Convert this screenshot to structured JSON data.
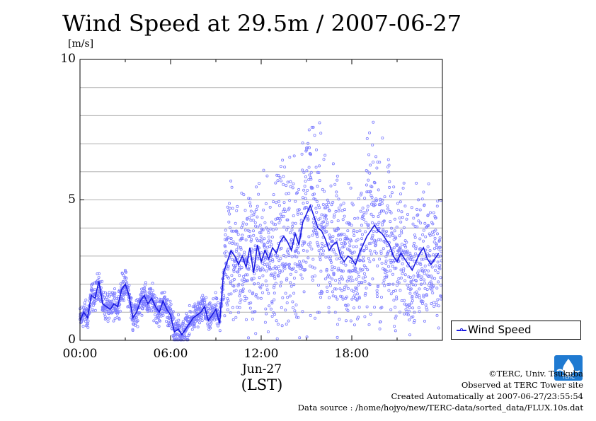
{
  "chart_data": {
    "type": "line",
    "title": "Wind Speed at 29.5m / 2007-06-27",
    "ylabel": "[m/s]",
    "xlabel": "(LST)",
    "date_label": "Jun-27",
    "xlim_hours": [
      0,
      24
    ],
    "ylim": [
      0,
      10
    ],
    "y_ticks": [
      0,
      5,
      10
    ],
    "y_tick_labels": [
      "0",
      "5",
      "10"
    ],
    "x_ticks_hours": [
      0,
      6,
      12,
      18
    ],
    "x_tick_labels": [
      "00:00",
      "06:00",
      "12:00",
      "18:00"
    ],
    "grid": "horizontal, every 1 m/s",
    "legend_position": "bottom-right",
    "series": [
      {
        "name": "Wind Speed",
        "color": "#1a1ae0",
        "raw_color": "#7d7dff",
        "x_hours": [
          0.0,
          0.25,
          0.5,
          0.75,
          1.0,
          1.25,
          1.5,
          1.75,
          2.0,
          2.25,
          2.5,
          2.75,
          3.0,
          3.25,
          3.5,
          3.75,
          4.0,
          4.25,
          4.5,
          4.75,
          5.0,
          5.25,
          5.5,
          5.75,
          6.0,
          6.25,
          6.5,
          6.75,
          7.0,
          7.25,
          7.5,
          7.75,
          8.0,
          8.25,
          8.5,
          8.75,
          9.0,
          9.25,
          9.5,
          9.75,
          10.0,
          10.25,
          10.5,
          10.75,
          11.0,
          11.25,
          11.5,
          11.75,
          12.0,
          12.25,
          12.5,
          12.75,
          13.0,
          13.25,
          13.5,
          13.75,
          14.0,
          14.25,
          14.5,
          14.75,
          15.0,
          15.25,
          15.5,
          15.75,
          16.0,
          16.25,
          16.5,
          16.75,
          17.0,
          17.25,
          17.5,
          17.75,
          18.0,
          18.25,
          18.5,
          18.75,
          19.0,
          19.25,
          19.5,
          19.75,
          20.0,
          20.25,
          20.5,
          20.75,
          21.0,
          21.25,
          21.5,
          21.75,
          22.0,
          22.25,
          22.5,
          22.75,
          23.0,
          23.25,
          23.5,
          23.75
        ],
        "values": [
          0.7,
          1.0,
          0.8,
          1.6,
          1.5,
          2.1,
          1.3,
          1.2,
          1.1,
          1.3,
          1.2,
          1.8,
          2.0,
          1.6,
          0.8,
          1.0,
          1.4,
          1.6,
          1.3,
          1.5,
          1.2,
          1.0,
          1.4,
          1.1,
          0.9,
          0.3,
          0.4,
          0.2,
          0.4,
          0.6,
          0.8,
          0.9,
          1.0,
          1.2,
          0.7,
          0.9,
          1.1,
          0.6,
          2.4,
          2.8,
          3.2,
          3.0,
          2.7,
          3.0,
          2.6,
          3.3,
          2.4,
          3.4,
          2.8,
          3.2,
          2.9,
          3.3,
          3.1,
          3.5,
          3.7,
          3.5,
          3.2,
          3.8,
          3.4,
          4.2,
          4.5,
          4.8,
          4.4,
          4.0,
          3.9,
          3.6,
          3.2,
          3.4,
          3.5,
          3.0,
          2.8,
          3.0,
          2.9,
          2.7,
          3.1,
          3.4,
          3.7,
          3.9,
          4.1,
          3.9,
          3.8,
          3.6,
          3.4,
          3.0,
          2.8,
          3.1,
          2.9,
          2.7,
          2.5,
          2.8,
          3.1,
          3.3,
          2.9,
          2.7,
          2.9,
          3.1
        ]
      }
    ]
  },
  "credits": {
    "copyright": "©TERC, Univ. Tsukuba",
    "observed": "Observed at TERC Tower site",
    "created": "Created Automatically at 2007-06-27/23:55:54",
    "source": "Data source : /home/hojyo/new/TERC-data/sorted_data/FLUX.10s.dat"
  },
  "logo": {
    "text": "TERC"
  }
}
